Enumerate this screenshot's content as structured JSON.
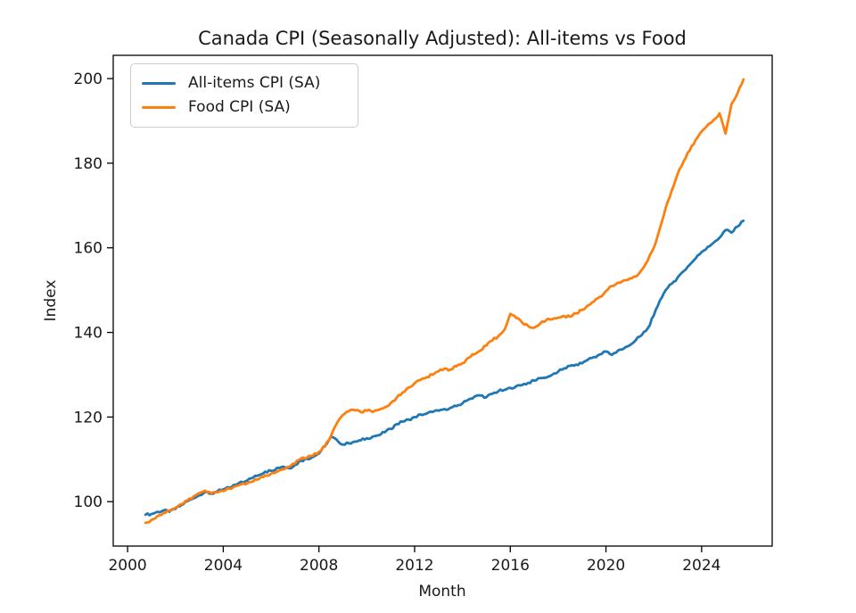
{
  "figure": {
    "background": "#ffffff",
    "text_color": "#1a1a1a",
    "spine_color": "#000000"
  },
  "chart_data": {
    "type": "line",
    "title": "Canada CPI (Seasonally Adjusted): All-items vs Food",
    "xlabel": "Month",
    "ylabel": "Index",
    "grid": false,
    "legend_position": "upper-left",
    "xlim": [
      1999.4,
      2026.95
    ],
    "ylim": [
      89.5,
      205.5
    ],
    "x_ticks": [
      2000,
      2004,
      2008,
      2012,
      2016,
      2020,
      2024
    ],
    "y_ticks": [
      100,
      120,
      140,
      160,
      180,
      200
    ],
    "x_unit": "decimal-year",
    "x_start": 2000.75,
    "x_step": 0.25,
    "noise_amplitude": 0.3,
    "series": [
      {
        "name": "All-items CPI (SA)",
        "color": "#1f77b4",
        "values": [
          96.9,
          97.1,
          97.6,
          97.9,
          97.6,
          98.3,
          99.2,
          100.1,
          100.8,
          101.5,
          102.3,
          101.9,
          102.4,
          102.9,
          103.3,
          104.0,
          104.7,
          105.0,
          105.7,
          106.3,
          107.1,
          107.3,
          108.0,
          108.3,
          107.9,
          108.7,
          109.7,
          110.1,
          110.6,
          111.4,
          113.2,
          115.3,
          114.6,
          113.5,
          113.8,
          114.2,
          114.5,
          115.0,
          115.4,
          115.7,
          116.4,
          117.2,
          118.3,
          118.9,
          119.4,
          120.0,
          120.6,
          120.8,
          121.2,
          121.5,
          121.9,
          122.2,
          122.6,
          123.2,
          124.1,
          124.8,
          125.1,
          124.7,
          125.5,
          126.1,
          126.4,
          126.9,
          127.3,
          127.6,
          128.1,
          128.6,
          129.2,
          129.3,
          130.0,
          130.7,
          131.5,
          132.1,
          132.4,
          132.7,
          133.6,
          134.2,
          134.8,
          135.5,
          134.7,
          135.7,
          136.2,
          137.0,
          138.2,
          139.4,
          141.0,
          144.0,
          147.5,
          150.0,
          151.5,
          153.0,
          154.5,
          156.0,
          157.5,
          159.0,
          160.2,
          161.2,
          162.4,
          164.2,
          163.6,
          165.0,
          166.4
        ]
      },
      {
        "name": "Food CPI (SA)",
        "color": "#ff7f0e",
        "values": [
          95.0,
          95.7,
          96.6,
          97.3,
          97.9,
          98.6,
          99.4,
          100.3,
          101.2,
          102.0,
          102.6,
          102.0,
          102.2,
          102.5,
          103.1,
          103.6,
          104.1,
          104.3,
          104.8,
          105.4,
          106.2,
          106.6,
          107.1,
          107.6,
          108.2,
          109.0,
          110.2,
          110.4,
          110.9,
          111.8,
          113.0,
          115.5,
          118.5,
          120.5,
          121.4,
          121.6,
          121.2,
          121.5,
          121.2,
          121.7,
          122.3,
          123.3,
          124.6,
          125.8,
          127.0,
          128.0,
          128.8,
          129.4,
          130.0,
          130.8,
          131.5,
          131.2,
          132.0,
          132.7,
          134.0,
          134.8,
          135.7,
          136.9,
          138.1,
          139.1,
          140.6,
          144.4,
          143.4,
          142.3,
          141.5,
          141.1,
          142.1,
          142.9,
          143.1,
          143.5,
          143.9,
          143.7,
          144.5,
          145.3,
          146.4,
          147.3,
          148.4,
          149.8,
          151.0,
          151.8,
          152.3,
          152.8,
          153.2,
          154.8,
          157.0,
          160.0,
          164.5,
          169.5,
          173.5,
          177.5,
          180.5,
          183.0,
          185.5,
          187.5,
          189.0,
          190.2,
          191.8,
          187.0,
          194.0,
          196.5,
          199.8
        ]
      }
    ]
  }
}
